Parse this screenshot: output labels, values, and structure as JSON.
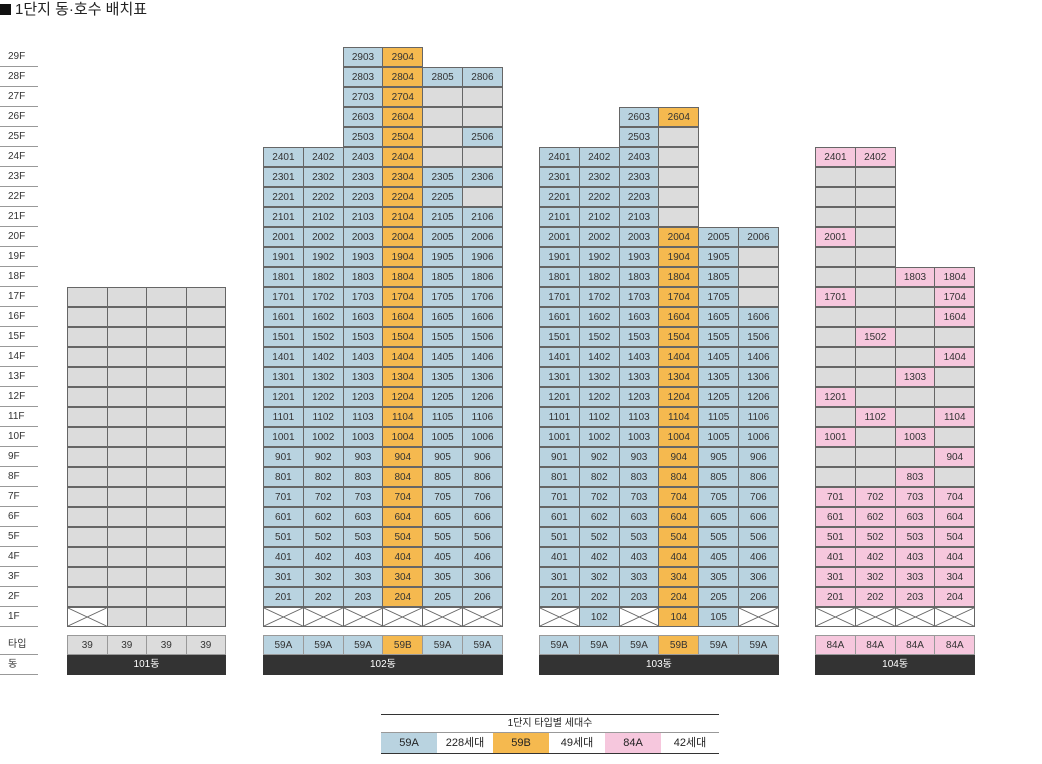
{
  "title": "1단지 동·호수 배치표",
  "floor_labels": [
    "29F",
    "28F",
    "27F",
    "26F",
    "25F",
    "24F",
    "23F",
    "22F",
    "21F",
    "20F",
    "19F",
    "18F",
    "17F",
    "16F",
    "15F",
    "14F",
    "13F",
    "12F",
    "11F",
    "10F",
    "9F",
    "8F",
    "7F",
    "6F",
    "5F",
    "4F",
    "3F",
    "2F",
    "1F"
  ],
  "type_row_label": "타입",
  "dong_row_label": "동",
  "colors": {
    "59A": "#b9d3e0",
    "59B": "#f5b94f",
    "84A": "#f6c7dd",
    "none": "#dcdcdc",
    "border": "#666666",
    "label_bar": "#333333"
  },
  "buildings": [
    {
      "name": "101동",
      "types": [
        "39",
        "39",
        "39",
        "39"
      ],
      "rows": [
        {
          "floor": "17F",
          "cells": [
            "-",
            "-",
            "-",
            "-"
          ]
        },
        {
          "floor": "16F",
          "cells": [
            "-",
            "-",
            "-",
            "-"
          ]
        },
        {
          "floor": "15F",
          "cells": [
            "-",
            "-",
            "-",
            "-"
          ]
        },
        {
          "floor": "14F",
          "cells": [
            "-",
            "-",
            "-",
            "-"
          ]
        },
        {
          "floor": "13F",
          "cells": [
            "-",
            "-",
            "-",
            "-"
          ]
        },
        {
          "floor": "12F",
          "cells": [
            "-",
            "-",
            "-",
            "-"
          ]
        },
        {
          "floor": "11F",
          "cells": [
            "-",
            "-",
            "-",
            "-"
          ]
        },
        {
          "floor": "10F",
          "cells": [
            "-",
            "-",
            "-",
            "-"
          ]
        },
        {
          "floor": "9F",
          "cells": [
            "-",
            "-",
            "-",
            "-"
          ]
        },
        {
          "floor": "8F",
          "cells": [
            "-",
            "-",
            "-",
            "-"
          ]
        },
        {
          "floor": "7F",
          "cells": [
            "-",
            "-",
            "-",
            "-"
          ]
        },
        {
          "floor": "6F",
          "cells": [
            "-",
            "-",
            "-",
            "-"
          ]
        },
        {
          "floor": "5F",
          "cells": [
            "-",
            "-",
            "-",
            "-"
          ]
        },
        {
          "floor": "4F",
          "cells": [
            "-",
            "-",
            "-",
            "-"
          ]
        },
        {
          "floor": "3F",
          "cells": [
            "-",
            "-",
            "-",
            "-"
          ]
        },
        {
          "floor": "2F",
          "cells": [
            "-",
            "-",
            "-",
            "-"
          ]
        },
        {
          "floor": "1F",
          "cells": [
            "X",
            "-",
            "-",
            "-"
          ]
        }
      ]
    },
    {
      "name": "102동",
      "types": [
        "59A",
        "59A",
        "59A",
        "59B",
        "59A",
        "59A"
      ],
      "rows": [
        {
          "floor": "29F",
          "cells": [
            null,
            null,
            "2903",
            "2904",
            null,
            null
          ]
        },
        {
          "floor": "28F",
          "cells": [
            null,
            null,
            "2803",
            "2804",
            "2805",
            "2806"
          ]
        },
        {
          "floor": "27F",
          "cells": [
            null,
            null,
            "2703",
            "2704",
            "-",
            "-"
          ]
        },
        {
          "floor": "26F",
          "cells": [
            null,
            null,
            "2603",
            "2604",
            "-",
            "-"
          ]
        },
        {
          "floor": "25F",
          "cells": [
            null,
            null,
            "2503",
            "2504",
            "-",
            "2506"
          ]
        },
        {
          "floor": "24F",
          "cells": [
            "2401",
            "2402",
            "2403",
            "2404",
            "-",
            "-"
          ]
        },
        {
          "floor": "23F",
          "cells": [
            "2301",
            "2302",
            "2303",
            "2304",
            "2305",
            "2306"
          ]
        },
        {
          "floor": "22F",
          "cells": [
            "2201",
            "2202",
            "2203",
            "2204",
            "2205",
            "-"
          ]
        },
        {
          "floor": "21F",
          "cells": [
            "2101",
            "2102",
            "2103",
            "2104",
            "2105",
            "2106"
          ]
        },
        {
          "floor": "20F",
          "cells": [
            "2001",
            "2002",
            "2003",
            "2004",
            "2005",
            "2006"
          ]
        },
        {
          "floor": "19F",
          "cells": [
            "1901",
            "1902",
            "1903",
            "1904",
            "1905",
            "1906"
          ]
        },
        {
          "floor": "18F",
          "cells": [
            "1801",
            "1802",
            "1803",
            "1804",
            "1805",
            "1806"
          ]
        },
        {
          "floor": "17F",
          "cells": [
            "1701",
            "1702",
            "1703",
            "1704",
            "1705",
            "1706"
          ]
        },
        {
          "floor": "16F",
          "cells": [
            "1601",
            "1602",
            "1603",
            "1604",
            "1605",
            "1606"
          ]
        },
        {
          "floor": "15F",
          "cells": [
            "1501",
            "1502",
            "1503",
            "1504",
            "1505",
            "1506"
          ]
        },
        {
          "floor": "14F",
          "cells": [
            "1401",
            "1402",
            "1403",
            "1404",
            "1405",
            "1406"
          ]
        },
        {
          "floor": "13F",
          "cells": [
            "1301",
            "1302",
            "1303",
            "1304",
            "1305",
            "1306"
          ]
        },
        {
          "floor": "12F",
          "cells": [
            "1201",
            "1202",
            "1203",
            "1204",
            "1205",
            "1206"
          ]
        },
        {
          "floor": "11F",
          "cells": [
            "1101",
            "1102",
            "1103",
            "1104",
            "1105",
            "1106"
          ]
        },
        {
          "floor": "10F",
          "cells": [
            "1001",
            "1002",
            "1003",
            "1004",
            "1005",
            "1006"
          ]
        },
        {
          "floor": "9F",
          "cells": [
            "901",
            "902",
            "903",
            "904",
            "905",
            "906"
          ]
        },
        {
          "floor": "8F",
          "cells": [
            "801",
            "802",
            "803",
            "804",
            "805",
            "806"
          ]
        },
        {
          "floor": "7F",
          "cells": [
            "701",
            "702",
            "703",
            "704",
            "705",
            "706"
          ]
        },
        {
          "floor": "6F",
          "cells": [
            "601",
            "602",
            "603",
            "604",
            "605",
            "606"
          ]
        },
        {
          "floor": "5F",
          "cells": [
            "501",
            "502",
            "503",
            "504",
            "505",
            "506"
          ]
        },
        {
          "floor": "4F",
          "cells": [
            "401",
            "402",
            "403",
            "404",
            "405",
            "406"
          ]
        },
        {
          "floor": "3F",
          "cells": [
            "301",
            "302",
            "303",
            "304",
            "305",
            "306"
          ]
        },
        {
          "floor": "2F",
          "cells": [
            "201",
            "202",
            "203",
            "204",
            "205",
            "206"
          ]
        },
        {
          "floor": "1F",
          "cells": [
            "X",
            "X",
            "X",
            "X",
            "X",
            "X"
          ]
        }
      ]
    },
    {
      "name": "103동",
      "types": [
        "59A",
        "59A",
        "59A",
        "59B",
        "59A",
        "59A"
      ],
      "rows": [
        {
          "floor": "26F",
          "cells": [
            null,
            null,
            "2603",
            "2604",
            null,
            null
          ]
        },
        {
          "floor": "25F",
          "cells": [
            null,
            null,
            "2503",
            "-",
            null,
            null
          ]
        },
        {
          "floor": "24F",
          "cells": [
            "2401",
            "2402",
            "2403",
            "-",
            null,
            null
          ]
        },
        {
          "floor": "23F",
          "cells": [
            "2301",
            "2302",
            "2303",
            "-",
            null,
            null
          ]
        },
        {
          "floor": "22F",
          "cells": [
            "2201",
            "2202",
            "2203",
            "-",
            null,
            null
          ]
        },
        {
          "floor": "21F",
          "cells": [
            "2101",
            "2102",
            "2103",
            "-",
            null,
            null
          ]
        },
        {
          "floor": "20F",
          "cells": [
            "2001",
            "2002",
            "2003",
            "2004",
            "2005",
            "2006"
          ]
        },
        {
          "floor": "19F",
          "cells": [
            "1901",
            "1902",
            "1903",
            "1904",
            "1905",
            "-"
          ]
        },
        {
          "floor": "18F",
          "cells": [
            "1801",
            "1802",
            "1803",
            "1804",
            "1805",
            "-"
          ]
        },
        {
          "floor": "17F",
          "cells": [
            "1701",
            "1702",
            "1703",
            "1704",
            "1705",
            "-"
          ]
        },
        {
          "floor": "16F",
          "cells": [
            "1601",
            "1602",
            "1603",
            "1604",
            "1605",
            "1606"
          ]
        },
        {
          "floor": "15F",
          "cells": [
            "1501",
            "1502",
            "1503",
            "1504",
            "1505",
            "1506"
          ]
        },
        {
          "floor": "14F",
          "cells": [
            "1401",
            "1402",
            "1403",
            "1404",
            "1405",
            "1406"
          ]
        },
        {
          "floor": "13F",
          "cells": [
            "1301",
            "1302",
            "1303",
            "1304",
            "1305",
            "1306"
          ]
        },
        {
          "floor": "12F",
          "cells": [
            "1201",
            "1202",
            "1203",
            "1204",
            "1205",
            "1206"
          ]
        },
        {
          "floor": "11F",
          "cells": [
            "1101",
            "1102",
            "1103",
            "1104",
            "1105",
            "1106"
          ]
        },
        {
          "floor": "10F",
          "cells": [
            "1001",
            "1002",
            "1003",
            "1004",
            "1005",
            "1006"
          ]
        },
        {
          "floor": "9F",
          "cells": [
            "901",
            "902",
            "903",
            "904",
            "905",
            "906"
          ]
        },
        {
          "floor": "8F",
          "cells": [
            "801",
            "802",
            "803",
            "804",
            "805",
            "806"
          ]
        },
        {
          "floor": "7F",
          "cells": [
            "701",
            "702",
            "703",
            "704",
            "705",
            "706"
          ]
        },
        {
          "floor": "6F",
          "cells": [
            "601",
            "602",
            "603",
            "604",
            "605",
            "606"
          ]
        },
        {
          "floor": "5F",
          "cells": [
            "501",
            "502",
            "503",
            "504",
            "505",
            "506"
          ]
        },
        {
          "floor": "4F",
          "cells": [
            "401",
            "402",
            "403",
            "404",
            "405",
            "406"
          ]
        },
        {
          "floor": "3F",
          "cells": [
            "301",
            "302",
            "303",
            "304",
            "305",
            "306"
          ]
        },
        {
          "floor": "2F",
          "cells": [
            "201",
            "202",
            "203",
            "204",
            "205",
            "206"
          ]
        },
        {
          "floor": "1F",
          "cells": [
            "X",
            "102",
            "X",
            "104",
            "105",
            "X"
          ]
        }
      ]
    },
    {
      "name": "104동",
      "types": [
        "84A",
        "84A",
        "84A",
        "84A"
      ],
      "rows": [
        {
          "floor": "24F",
          "cells": [
            "2401",
            "2402",
            null,
            null
          ]
        },
        {
          "floor": "23F",
          "cells": [
            "-",
            "-",
            null,
            null
          ]
        },
        {
          "floor": "22F",
          "cells": [
            "-",
            "-",
            null,
            null
          ]
        },
        {
          "floor": "21F",
          "cells": [
            "-",
            "-",
            null,
            null
          ]
        },
        {
          "floor": "20F",
          "cells": [
            "2001",
            "-",
            null,
            null
          ]
        },
        {
          "floor": "19F",
          "cells": [
            "-",
            "-",
            null,
            null
          ]
        },
        {
          "floor": "18F",
          "cells": [
            "-",
            "-",
            "1803",
            "1804"
          ]
        },
        {
          "floor": "17F",
          "cells": [
            "1701",
            "-",
            "-",
            "1704"
          ]
        },
        {
          "floor": "16F",
          "cells": [
            "-",
            "-",
            "-",
            "1604"
          ]
        },
        {
          "floor": "15F",
          "cells": [
            "-",
            "1502",
            "-",
            "-"
          ]
        },
        {
          "floor": "14F",
          "cells": [
            "-",
            "-",
            "-",
            "1404"
          ]
        },
        {
          "floor": "13F",
          "cells": [
            "-",
            "-",
            "1303",
            "-"
          ]
        },
        {
          "floor": "12F",
          "cells": [
            "1201",
            "-",
            "-",
            "-"
          ]
        },
        {
          "floor": "11F",
          "cells": [
            "-",
            "1102",
            "-",
            "1104"
          ]
        },
        {
          "floor": "10F",
          "cells": [
            "1001",
            "-",
            "1003",
            "-"
          ]
        },
        {
          "floor": "9F",
          "cells": [
            "-",
            "-",
            "-",
            "904"
          ]
        },
        {
          "floor": "8F",
          "cells": [
            "-",
            "-",
            "803",
            "-"
          ]
        },
        {
          "floor": "7F",
          "cells": [
            "701",
            "702",
            "703",
            "704"
          ]
        },
        {
          "floor": "6F",
          "cells": [
            "601",
            "602",
            "603",
            "604"
          ]
        },
        {
          "floor": "5F",
          "cells": [
            "501",
            "502",
            "503",
            "504"
          ]
        },
        {
          "floor": "4F",
          "cells": [
            "401",
            "402",
            "403",
            "404"
          ]
        },
        {
          "floor": "3F",
          "cells": [
            "301",
            "302",
            "303",
            "304"
          ]
        },
        {
          "floor": "2F",
          "cells": [
            "201",
            "202",
            "203",
            "204"
          ]
        },
        {
          "floor": "1F",
          "cells": [
            "X",
            "X",
            "X",
            "X"
          ]
        }
      ]
    }
  ],
  "legend": {
    "title": "1단지 타입별 세대수",
    "items": [
      {
        "type": "59A",
        "count": "228세대"
      },
      {
        "type": "59B",
        "count": "49세대"
      },
      {
        "type": "84A",
        "count": "42세대"
      }
    ]
  }
}
